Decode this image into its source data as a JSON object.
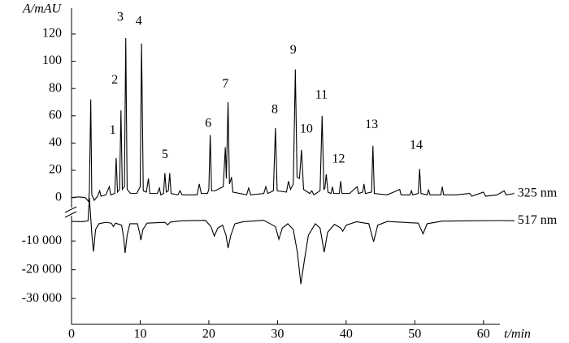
{
  "chart_data": {
    "type": "line",
    "xlabel": "t/min",
    "ylabel": "A/mAU",
    "xlim": [
      0,
      65
    ],
    "xticks": [
      0,
      10,
      20,
      30,
      40,
      50,
      60
    ],
    "ylim": [
      -93,
      139
    ],
    "yticks": [
      0,
      20,
      40,
      60,
      80,
      100,
      120
    ],
    "y2lim": [
      -39000,
      71000
    ],
    "y2ticks": [
      {
        "value": -10000,
        "label": "-10 000"
      },
      {
        "value": -20000,
        "label": "-20 000"
      },
      {
        "value": -30000,
        "label": "-30 000"
      }
    ],
    "series": [
      {
        "name": "325 nm",
        "color": "#000000",
        "x": [
          0,
          1,
          2,
          2.5,
          2.6,
          2.8,
          2.95,
          3.3,
          3.8,
          4.1,
          4.3,
          5.0,
          5.5,
          5.7,
          6.3,
          6.5,
          6.7,
          7.0,
          7.2,
          7.4,
          7.7,
          7.9,
          8.1,
          8.6,
          9.5,
          10.0,
          10.2,
          10.45,
          10.9,
          11.2,
          11.4,
          12.5,
          12.8,
          13.0,
          13.4,
          13.6,
          13.8,
          14.1,
          14.3,
          14.5,
          15.5,
          15.8,
          16.1,
          18.3,
          18.6,
          18.9,
          19.8,
          20.0,
          20.2,
          20.4,
          20.9,
          22.1,
          22.4,
          22.55,
          22.8,
          23.0,
          23.3,
          23.5,
          25.5,
          25.8,
          26.1,
          28.0,
          28.3,
          28.6,
          29.4,
          29.7,
          29.95,
          31.3,
          31.6,
          31.9,
          32.3,
          32.6,
          32.85,
          33.2,
          33.5,
          33.8,
          34.7,
          35.0,
          35.3,
          36.2,
          36.5,
          36.75,
          36.9,
          37.1,
          37.35,
          37.8,
          38.0,
          38.2,
          39.0,
          39.2,
          39.4,
          40.5,
          41.6,
          41.8,
          42.4,
          42.6,
          42.8,
          43.7,
          43.9,
          44.1,
          46.0,
          47.8,
          48.0,
          49.3,
          49.5,
          49.7,
          50.5,
          50.7,
          50.9,
          51.8,
          52.0,
          52.2,
          53.8,
          54.0,
          54.2,
          56.0,
          58.0,
          58.3,
          60.0,
          60.3,
          62,
          63.0,
          63.3,
          64.5
        ],
        "values": [
          0,
          0.5,
          0,
          -3,
          5,
          72,
          2,
          -2,
          1,
          5,
          1,
          2,
          8,
          2,
          3,
          29,
          4,
          6,
          64,
          6,
          8,
          117,
          6,
          3,
          3,
          8,
          113,
          5,
          4,
          14,
          3,
          3,
          7,
          2,
          3,
          18,
          4,
          5,
          18,
          3,
          2,
          5,
          2,
          2,
          10,
          3,
          3,
          6,
          46,
          5,
          5,
          8,
          37,
          14,
          70,
          10,
          15,
          4,
          2,
          7,
          2,
          3,
          8,
          3,
          5,
          51,
          5,
          4,
          12,
          6,
          10,
          94,
          15,
          14,
          35,
          6,
          3,
          5,
          2,
          5,
          60,
          6,
          7,
          17,
          4,
          3,
          8,
          3,
          3,
          12,
          3,
          3,
          8,
          3,
          4,
          10,
          3,
          4,
          38,
          3,
          2,
          6,
          2,
          2,
          5,
          2,
          3,
          21,
          3,
          2,
          6,
          2,
          2,
          8,
          2,
          2,
          3,
          1,
          4,
          1,
          2,
          5,
          2,
          3
        ]
      },
      {
        "name": "517 nm",
        "color": "#000000",
        "axis": "y2",
        "x": [
          0,
          1.5,
          2.4,
          2.6,
          2.8,
          3.0,
          3.2,
          3.5,
          4.0,
          5.0,
          5.8,
          6.1,
          6.4,
          7.3,
          7.6,
          7.8,
          8.1,
          8.5,
          9.6,
          9.9,
          10.1,
          10.4,
          11.0,
          13.6,
          14.0,
          14.4,
          16,
          19.5,
          20.3,
          20.8,
          21.3,
          22.0,
          22.5,
          22.8,
          23.2,
          23.8,
          25,
          28,
          29.7,
          30.2,
          30.7,
          31.5,
          32.3,
          32.9,
          33.4,
          33.9,
          34.5,
          35.5,
          36.2,
          36.8,
          37.3,
          38.3,
          39.2,
          39.5,
          40.0,
          41.5,
          43.3,
          44.0,
          44.6,
          46,
          50.5,
          51.2,
          51.8,
          54,
          58,
          62,
          64.5
        ],
        "values": [
          -3200,
          -3300,
          -3000,
          5000,
          -2000,
          -9000,
          -13700,
          -6000,
          -4000,
          -3500,
          -3800,
          -5000,
          -3800,
          -4500,
          -9000,
          -14200,
          -8000,
          -4000,
          -4000,
          -7000,
          -9700,
          -6000,
          -3800,
          -3500,
          -4400,
          -3400,
          -3000,
          -2800,
          -5000,
          -8300,
          -5500,
          -4500,
          -8000,
          -12500,
          -8000,
          -4000,
          -3300,
          -2800,
          -5000,
          -9400,
          -5500,
          -4000,
          -6000,
          -14000,
          -25000,
          -17000,
          -8000,
          -4000,
          -5500,
          -13900,
          -7000,
          -4200,
          -5500,
          -6600,
          -4500,
          -3300,
          -4000,
          -10300,
          -4500,
          -3200,
          -3800,
          -7500,
          -4000,
          -3100,
          -3000,
          -2900,
          -2950
        ]
      }
    ],
    "annotations": [
      {
        "text": "1",
        "x": 6.0,
        "y": 49
      },
      {
        "text": "2",
        "x": 6.3,
        "y": 86
      },
      {
        "text": "3",
        "x": 7.1,
        "y": 132
      },
      {
        "text": "4",
        "x": 9.8,
        "y": 129
      },
      {
        "text": "5",
        "x": 13.6,
        "y": 31
      },
      {
        "text": "6",
        "x": 19.9,
        "y": 54
      },
      {
        "text": "7",
        "x": 22.4,
        "y": 83
      },
      {
        "text": "8",
        "x": 29.6,
        "y": 64
      },
      {
        "text": "9",
        "x": 32.3,
        "y": 108
      },
      {
        "text": "10",
        "x": 34.2,
        "y": 50
      },
      {
        "text": "11",
        "x": 36.4,
        "y": 75
      },
      {
        "text": "12",
        "x": 38.9,
        "y": 28
      },
      {
        "text": "13",
        "x": 43.7,
        "y": 53
      },
      {
        "text": "14",
        "x": 50.2,
        "y": 38
      }
    ]
  }
}
